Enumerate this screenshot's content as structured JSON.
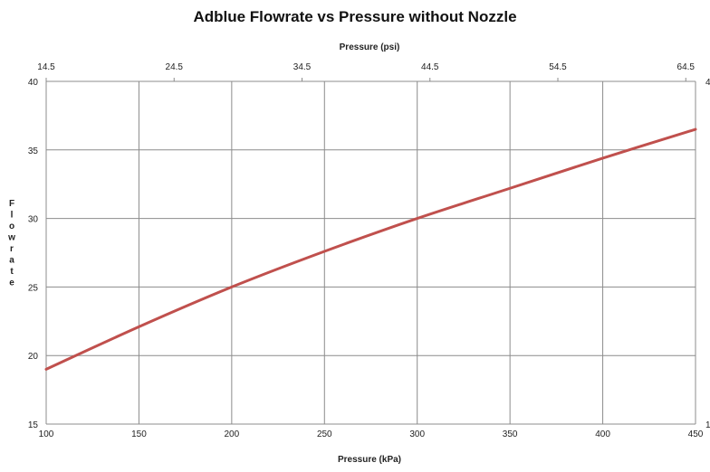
{
  "chart_data": {
    "type": "line",
    "title": "Adblue Flowrate vs Pressure without Nozzle",
    "xlabel": "Pressure (kPa)",
    "x2label": "Pressure (psi)",
    "ylabel": "Flowrate",
    "xlim": [
      100,
      450
    ],
    "ylim": [
      15,
      40
    ],
    "x2lim": [
      14.5,
      65.26
    ],
    "x_ticks": [
      100,
      150,
      200,
      250,
      300,
      350,
      400,
      450
    ],
    "y_ticks": [
      15,
      20,
      25,
      30,
      35,
      40
    ],
    "x2_ticks": [
      14.5,
      24.5,
      34.5,
      44.5,
      54.5,
      64.5
    ],
    "x2_tick_labels": [
      "14.5",
      "24.5",
      "34.5",
      "44.5",
      "54.5",
      "64.5"
    ],
    "right_tick_labels": [
      "1",
      "4"
    ],
    "grid": true,
    "line_color": "#c0504d",
    "series": [
      {
        "x": [
          100,
          150,
          200,
          250,
          300,
          350,
          400,
          450
        ],
        "values": [
          19.0,
          22.1,
          25.0,
          27.6,
          30.0,
          32.2,
          34.4,
          36.5
        ]
      }
    ]
  }
}
